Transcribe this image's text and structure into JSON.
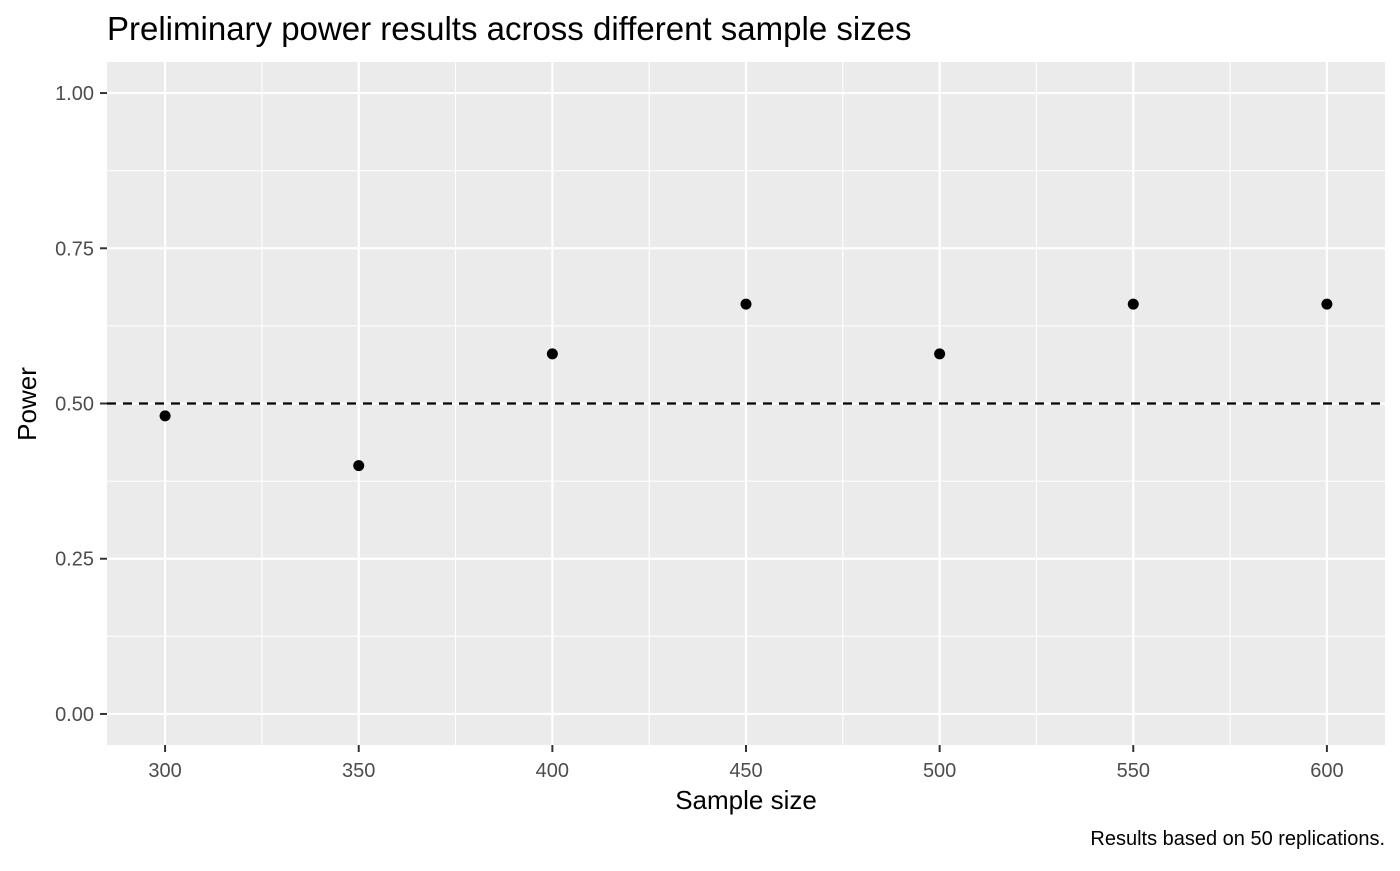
{
  "chart_data": {
    "type": "scatter",
    "title": "Preliminary power results across different sample sizes",
    "xlabel": "Sample size",
    "ylabel": "Power",
    "caption": "Results based on 50 replications.",
    "x": [
      300,
      350,
      400,
      450,
      500,
      550,
      600
    ],
    "y": [
      0.48,
      0.4,
      0.58,
      0.66,
      0.58,
      0.66,
      0.66
    ],
    "xlim": [
      285,
      615
    ],
    "ylim": [
      -0.05,
      1.05
    ],
    "x_ticks": [
      300,
      350,
      400,
      450,
      500,
      550,
      600
    ],
    "x_tick_labels": [
      "300",
      "350",
      "400",
      "450",
      "500",
      "550",
      "600"
    ],
    "y_ticks": [
      0,
      0.25,
      0.5,
      0.75,
      1
    ],
    "y_tick_labels": [
      "0.00",
      "0.25",
      "0.50",
      "0.75",
      "1.00"
    ],
    "reference_line": {
      "y": 0.5,
      "style": "dashed",
      "color": "#000000"
    },
    "point_color": "#000000",
    "panel_background": "#ebebeb",
    "grid": true,
    "legend": "none"
  }
}
